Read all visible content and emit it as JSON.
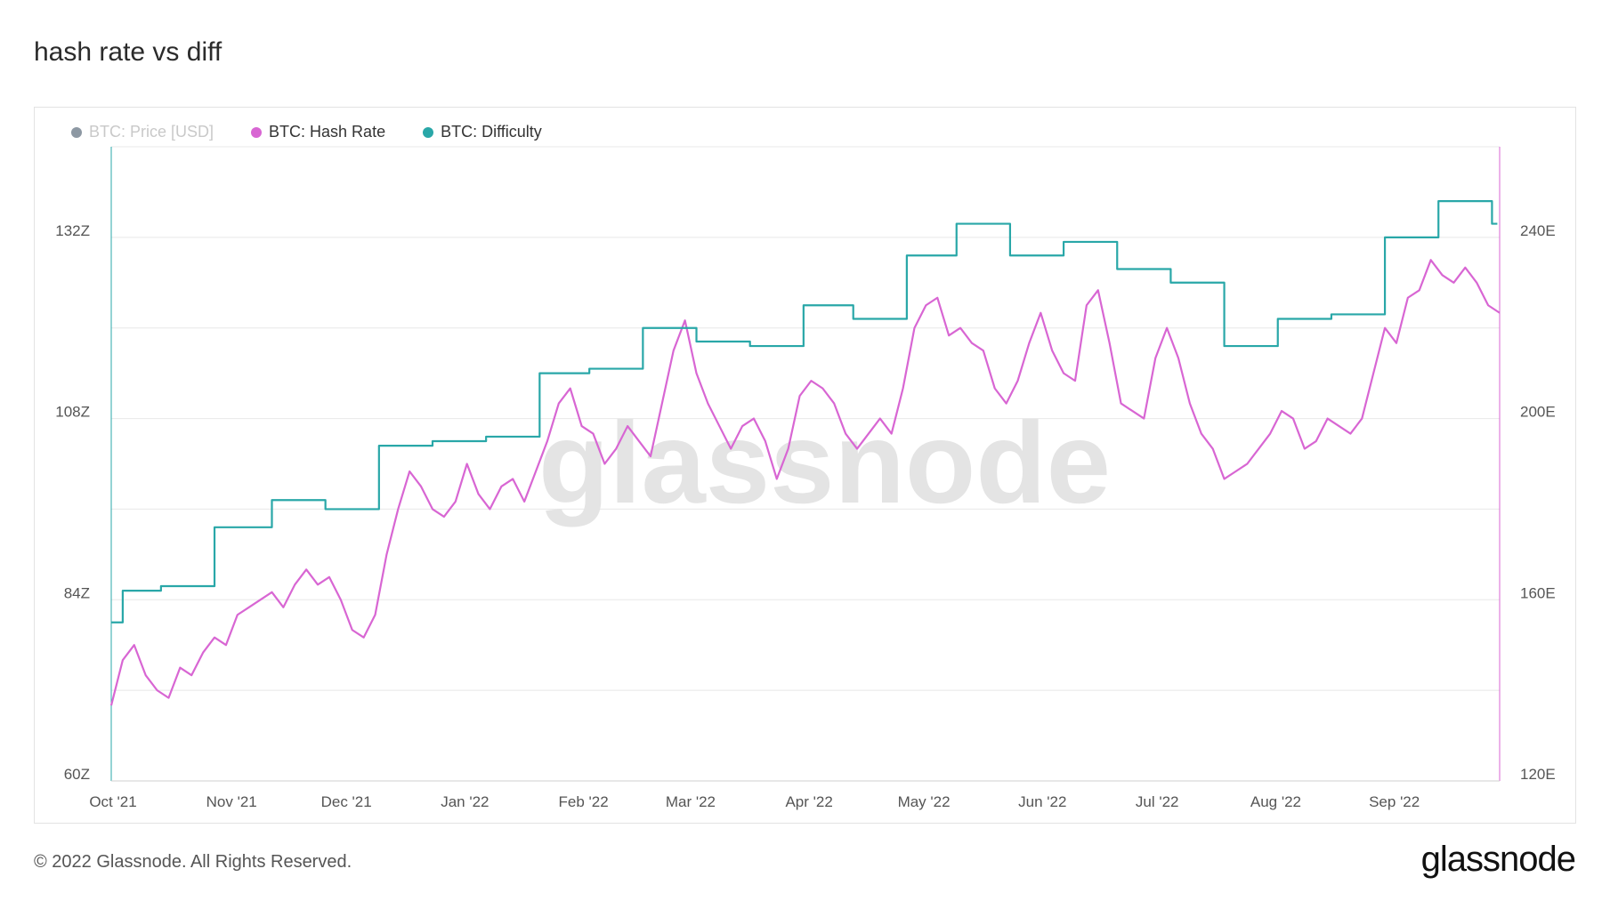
{
  "header": {
    "title": "hash rate vs diff"
  },
  "legend": [
    {
      "label": "BTC: Price [USD]",
      "color": "#8d98a3",
      "enabled": false
    },
    {
      "label": "BTC: Hash Rate",
      "color": "#d866d3",
      "enabled": true
    },
    {
      "label": "BTC: Difficulty",
      "color": "#29a7a8",
      "enabled": true
    }
  ],
  "watermark": "glassnode",
  "footer": {
    "copyright": "© 2022 Glassnode. All Rights Reserved.",
    "logo": "glassnode"
  },
  "chart_data": {
    "type": "line",
    "grid": true,
    "legend_position": "top-left",
    "x_tick_labels": [
      "Oct '21",
      "Nov '21",
      "Dec '21",
      "Jan '22",
      "Feb '22",
      "Mar '22",
      "Apr '22",
      "May '22",
      "Jun '22",
      "Jul '22",
      "Aug '22",
      "Sep '22"
    ],
    "y_left": {
      "tick_labels": [
        "60Z",
        "84Z",
        "108Z",
        "132Z"
      ],
      "ticks": [
        60,
        84,
        108,
        132
      ],
      "range": [
        60,
        144
      ]
    },
    "y_right": {
      "tick_labels": [
        "120E",
        "160E",
        "200E",
        "240E"
      ],
      "ticks": [
        120,
        160,
        200,
        240
      ],
      "range": [
        120,
        260
      ]
    },
    "x_range": [
      "2021-10-01",
      "2022-09-29"
    ],
    "series": [
      {
        "name": "BTC: Hash Rate",
        "axis": "left",
        "color": "#d866d3",
        "x": [
          "2021-10-01",
          "2021-10-04",
          "2021-10-07",
          "2021-10-10",
          "2021-10-13",
          "2021-10-16",
          "2021-10-19",
          "2021-10-22",
          "2021-10-25",
          "2021-10-28",
          "2021-10-31",
          "2021-11-03",
          "2021-11-06",
          "2021-11-09",
          "2021-11-12",
          "2021-11-15",
          "2021-11-18",
          "2021-11-21",
          "2021-11-24",
          "2021-11-27",
          "2021-11-30",
          "2021-12-03",
          "2021-12-06",
          "2021-12-09",
          "2021-12-12",
          "2021-12-15",
          "2021-12-18",
          "2021-12-21",
          "2021-12-24",
          "2021-12-27",
          "2021-12-30",
          "2022-01-02",
          "2022-01-05",
          "2022-01-08",
          "2022-01-11",
          "2022-01-14",
          "2022-01-17",
          "2022-01-20",
          "2022-01-23",
          "2022-01-26",
          "2022-01-29",
          "2022-02-01",
          "2022-02-04",
          "2022-02-07",
          "2022-02-10",
          "2022-02-13",
          "2022-02-16",
          "2022-02-19",
          "2022-02-22",
          "2022-02-25",
          "2022-02-28",
          "2022-03-03",
          "2022-03-06",
          "2022-03-09",
          "2022-03-12",
          "2022-03-15",
          "2022-03-18",
          "2022-03-21",
          "2022-03-24",
          "2022-03-27",
          "2022-03-30",
          "2022-04-02",
          "2022-04-05",
          "2022-04-08",
          "2022-04-11",
          "2022-04-14",
          "2022-04-17",
          "2022-04-20",
          "2022-04-23",
          "2022-04-26",
          "2022-04-29",
          "2022-05-02",
          "2022-05-05",
          "2022-05-08",
          "2022-05-11",
          "2022-05-14",
          "2022-05-17",
          "2022-05-20",
          "2022-05-23",
          "2022-05-26",
          "2022-05-29",
          "2022-06-01",
          "2022-06-04",
          "2022-06-07",
          "2022-06-10",
          "2022-06-13",
          "2022-06-16",
          "2022-06-19",
          "2022-06-22",
          "2022-06-25",
          "2022-06-28",
          "2022-07-01",
          "2022-07-04",
          "2022-07-07",
          "2022-07-10",
          "2022-07-13",
          "2022-07-16",
          "2022-07-19",
          "2022-07-22",
          "2022-07-25",
          "2022-07-28",
          "2022-07-31",
          "2022-08-03",
          "2022-08-06",
          "2022-08-09",
          "2022-08-12",
          "2022-08-15",
          "2022-08-18",
          "2022-08-21",
          "2022-08-24",
          "2022-08-27",
          "2022-08-30",
          "2022-09-02",
          "2022-09-05",
          "2022-09-08",
          "2022-09-11",
          "2022-09-14",
          "2022-09-17",
          "2022-09-20",
          "2022-09-23",
          "2022-09-26",
          "2022-09-29"
        ],
        "values": [
          70,
          76,
          78,
          74,
          72,
          71,
          75,
          74,
          77,
          79,
          78,
          82,
          83,
          84,
          85,
          83,
          86,
          88,
          86,
          87,
          84,
          80,
          79,
          82,
          90,
          96,
          101,
          99,
          96,
          95,
          97,
          102,
          98,
          96,
          99,
          100,
          97,
          101,
          105,
          110,
          112,
          107,
          106,
          102,
          104,
          107,
          105,
          103,
          110,
          117,
          121,
          114,
          110,
          107,
          104,
          107,
          108,
          105,
          100,
          104,
          111,
          113,
          112,
          110,
          106,
          104,
          106,
          108,
          106,
          112,
          120,
          123,
          124,
          119,
          120,
          118,
          117,
          112,
          110,
          113,
          118,
          122,
          117,
          114,
          113,
          123,
          125,
          118,
          110,
          109,
          108,
          116,
          120,
          116,
          110,
          106,
          104,
          100,
          101,
          102,
          104,
          106,
          109,
          108,
          104,
          105,
          108,
          107,
          106,
          108,
          114,
          120,
          118,
          124,
          125,
          129,
          127,
          126,
          128,
          126,
          123,
          122
        ]
      },
      {
        "name": "BTC: Difficulty",
        "axis": "right",
        "color": "#29a7a8",
        "x": [
          "2021-10-01",
          "2021-10-04",
          "2021-10-14",
          "2021-10-28",
          "2021-11-12",
          "2021-11-26",
          "2021-12-10",
          "2021-12-24",
          "2022-01-07",
          "2022-01-21",
          "2022-02-03",
          "2022-02-17",
          "2022-03-03",
          "2022-03-17",
          "2022-03-31",
          "2022-04-13",
          "2022-04-27",
          "2022-05-10",
          "2022-05-24",
          "2022-06-07",
          "2022-06-21",
          "2022-07-05",
          "2022-07-19",
          "2022-08-02",
          "2022-08-16",
          "2022-08-30",
          "2022-09-13",
          "2022-09-27"
        ],
        "values": [
          155,
          162,
          163,
          176,
          182,
          180,
          194,
          195,
          196,
          210,
          211,
          220,
          217,
          216,
          225,
          222,
          236,
          243,
          236,
          239,
          233,
          230,
          216,
          222,
          223,
          240,
          248,
          243
        ]
      }
    ]
  }
}
